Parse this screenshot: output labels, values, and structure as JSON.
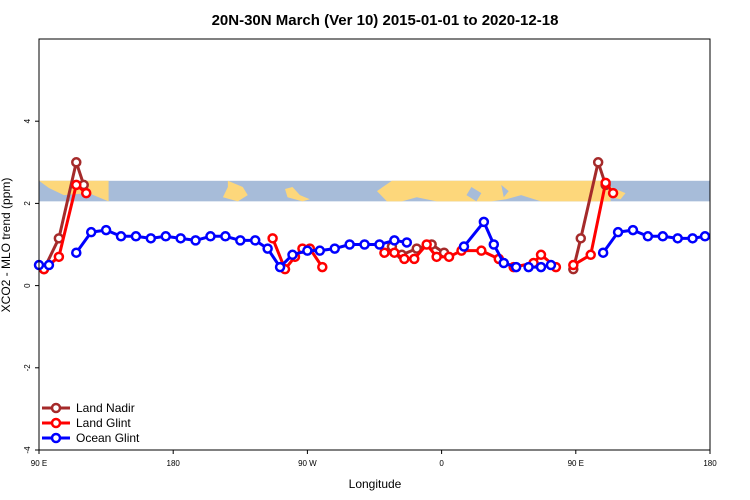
{
  "chart_data": {
    "type": "line",
    "title": "20N-30N March (Ver 10)   2015-01-01 to 2020-12-18",
    "xlabel": "Longitude",
    "ylabel": "XCO2 - MLO trend (ppm)",
    "xlim": [
      -90,
      180
    ],
    "ylim": [
      -4,
      6
    ],
    "x_ticks": [
      -90,
      -36,
      18,
      72,
      126,
      180
    ],
    "x_tick_labels": [
      "90 E",
      "180",
      "90 W",
      "0",
      "90 E",
      "180"
    ],
    "y_ticks": [
      -4,
      -2,
      0,
      2,
      4
    ],
    "y_tick_labels": [
      "-4",
      "-2",
      "0",
      "2",
      "4"
    ],
    "grid": false,
    "legend_position": "bottom-left",
    "band": {
      "y_min": 2.05,
      "y_max": 2.55,
      "ocean_color": "#a7bcd9",
      "land_color": "#fdd77b"
    },
    "series": [
      {
        "name": "Land Nadir",
        "color": "#a52a2a",
        "segments": [
          [
            [
              -88,
              0.4
            ],
            [
              -82,
              1.15
            ],
            [
              -75,
              3.0
            ],
            [
              -72,
              2.45
            ]
          ],
          [
            [
              52,
              0.95
            ],
            [
              56,
              0.75
            ],
            [
              62,
              0.9
            ],
            [
              68,
              1.0
            ],
            [
              73,
              0.8
            ]
          ],
          [
            [
              125,
              0.4
            ],
            [
              128,
              1.15
            ],
            [
              135,
              3.0
            ],
            [
              138,
              2.45
            ]
          ]
        ]
      },
      {
        "name": "Land Glint",
        "color": "#ff0000",
        "segments": [
          [
            [
              -88,
              0.4
            ],
            [
              -82,
              0.7
            ],
            [
              -75,
              2.45
            ],
            [
              -71,
              2.25
            ]
          ],
          [
            [
              4,
              1.15
            ],
            [
              9,
              0.4
            ],
            [
              13,
              0.7
            ],
            [
              16,
              0.9
            ],
            [
              19,
              0.9
            ],
            [
              24,
              0.45
            ]
          ],
          [
            [
              49,
              0.8
            ],
            [
              53,
              0.8
            ],
            [
              57,
              0.65
            ],
            [
              61,
              0.65
            ],
            [
              66,
              1.0
            ],
            [
              70,
              0.7
            ],
            [
              75,
              0.7
            ],
            [
              80,
              0.85
            ],
            [
              88,
              0.85
            ],
            [
              95,
              0.65
            ],
            [
              101,
              0.45
            ],
            [
              109,
              0.55
            ],
            [
              112,
              0.75
            ],
            [
              118,
              0.45
            ]
          ],
          [
            [
              125,
              0.5
            ],
            [
              132,
              0.75
            ],
            [
              138,
              2.5
            ],
            [
              141,
              2.25
            ]
          ]
        ]
      },
      {
        "name": "Ocean Glint",
        "color": "#0000ff",
        "segments": [
          [
            [
              -90,
              0.5
            ],
            [
              -86,
              0.5
            ]
          ],
          [
            [
              -75,
              0.8
            ],
            [
              -69,
              1.3
            ],
            [
              -63,
              1.35
            ],
            [
              -57,
              1.2
            ],
            [
              -51,
              1.2
            ],
            [
              -45,
              1.15
            ],
            [
              -39,
              1.2
            ],
            [
              -33,
              1.15
            ],
            [
              -27,
              1.1
            ],
            [
              -21,
              1.2
            ],
            [
              -15,
              1.2
            ],
            [
              -9,
              1.1
            ],
            [
              -3,
              1.1
            ],
            [
              2,
              0.9
            ],
            [
              7,
              0.45
            ],
            [
              12,
              0.75
            ],
            [
              18,
              0.85
            ],
            [
              23,
              0.85
            ],
            [
              29,
              0.9
            ],
            [
              35,
              1.0
            ],
            [
              41,
              1.0
            ],
            [
              47,
              1.0
            ],
            [
              53,
              1.1
            ],
            [
              58,
              1.05
            ]
          ],
          [
            [
              81,
              0.95
            ],
            [
              89,
              1.55
            ],
            [
              93,
              1.0
            ],
            [
              97,
              0.55
            ],
            [
              102,
              0.45
            ]
          ],
          [
            [
              107,
              0.45
            ],
            [
              112,
              0.45
            ],
            [
              116,
              0.5
            ]
          ],
          [
            [
              137,
              0.8
            ],
            [
              143,
              1.3
            ],
            [
              149,
              1.35
            ],
            [
              155,
              1.2
            ],
            [
              161,
              1.2
            ],
            [
              167,
              1.15
            ],
            [
              173,
              1.15
            ],
            [
              178,
              1.2
            ]
          ]
        ]
      }
    ]
  }
}
